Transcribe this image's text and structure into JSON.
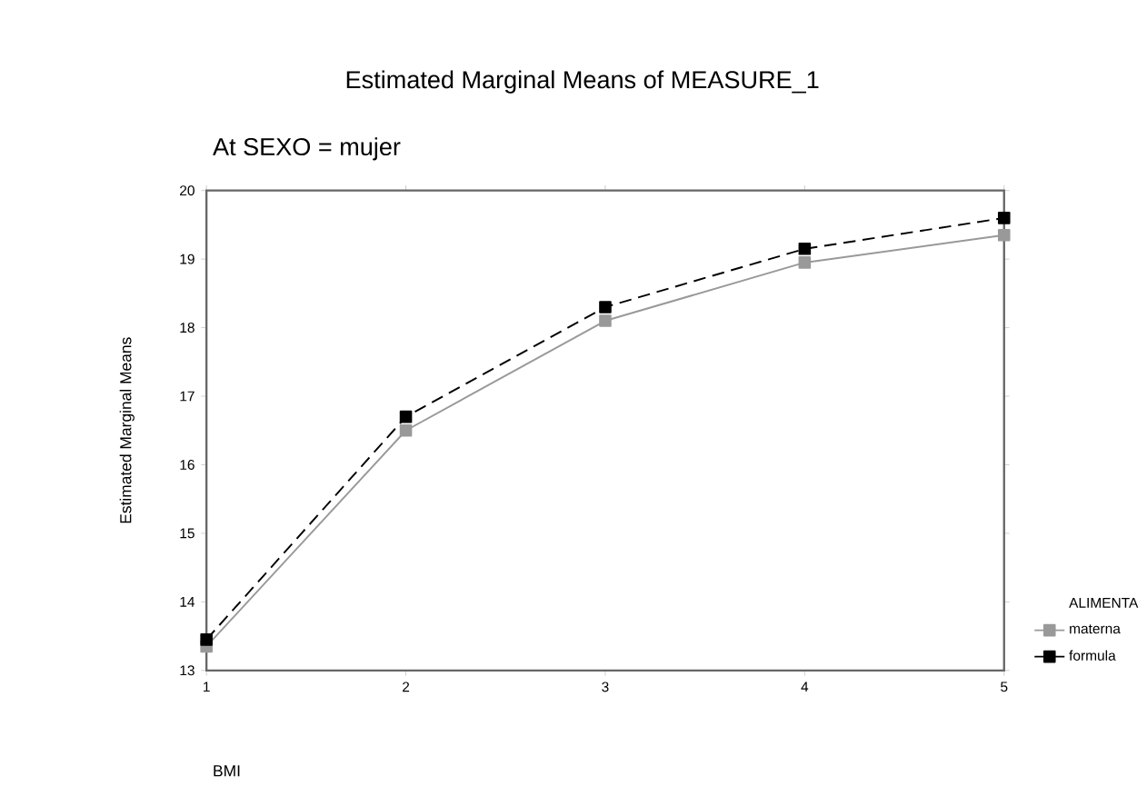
{
  "chart_data": {
    "type": "line",
    "title": "Estimated Marginal Means of MEASURE_1",
    "subtitle": "At SEXO = mujer",
    "xlabel": "BMI",
    "ylabel": "Estimated Marginal Means",
    "legend_title": "ALIMENTA",
    "x": [
      1,
      2,
      3,
      4,
      5
    ],
    "series": [
      {
        "name": "materna",
        "color": "#999999",
        "line_style": "solid",
        "values": [
          13.35,
          16.5,
          18.1,
          18.95,
          19.35
        ]
      },
      {
        "name": "formula",
        "color": "#000000",
        "line_style": "dashed",
        "values": [
          13.45,
          16.7,
          18.3,
          19.15,
          19.6
        ]
      }
    ],
    "xlim": [
      1,
      5
    ],
    "ylim": [
      13,
      20
    ],
    "xticks": [
      1,
      2,
      3,
      4,
      5
    ],
    "yticks": [
      13,
      14,
      15,
      16,
      17,
      18,
      19,
      20
    ],
    "marker": "square",
    "grid": false,
    "legend": "right"
  }
}
